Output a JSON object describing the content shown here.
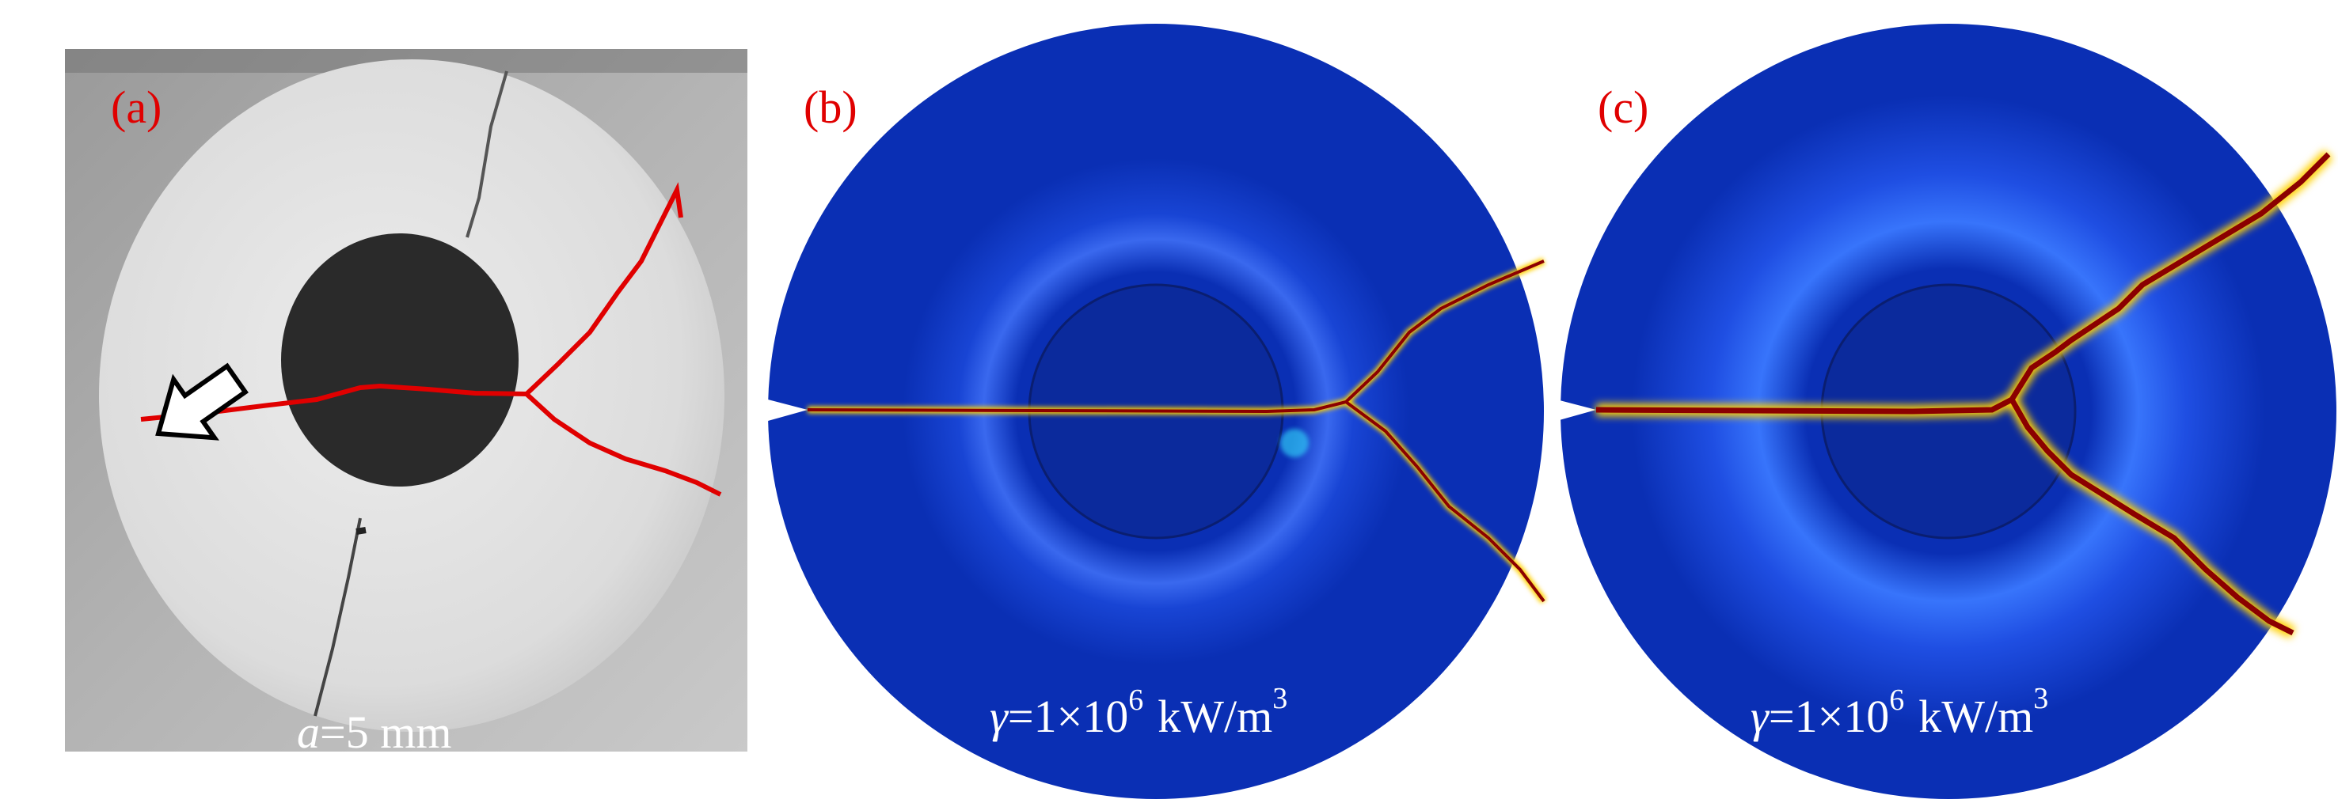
{
  "panels": {
    "a": {
      "label": "(a)",
      "caption_var": "a",
      "caption_rest": "=5 mm"
    },
    "b": {
      "label": "(b)",
      "caption_var": "γ",
      "caption_rest": "=1×10",
      "caption_exp": "6",
      "caption_unit": "kW/m",
      "caption_unit_exp": "3"
    },
    "c": {
      "label": "(c)",
      "caption_var": "γ",
      "caption_rest": "=1×10",
      "caption_exp": "6",
      "caption_unit": "kW/m",
      "caption_unit_exp": "3"
    }
  },
  "colors": {
    "crack_overlay": "#e00000",
    "field_background": "#0a2fb4",
    "crack_core": "#8b0000",
    "crack_halo": "#ffd000",
    "label_red": "#e00000"
  }
}
